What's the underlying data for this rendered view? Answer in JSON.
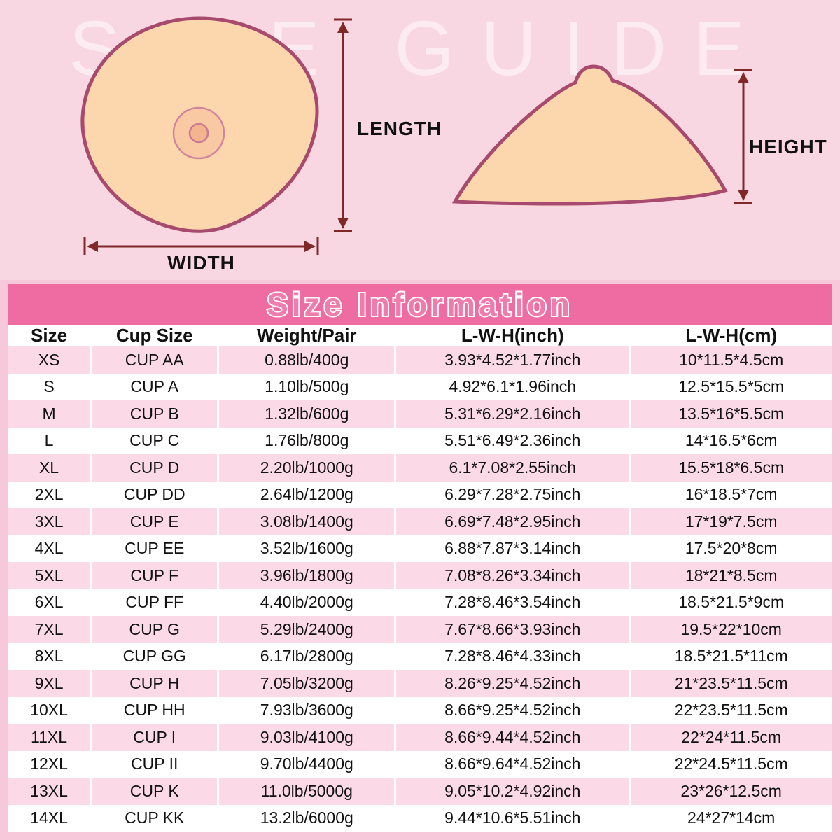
{
  "title": "Size Information",
  "diagram": {
    "watermark": "SIZE GUIDE",
    "labels": {
      "length": "LENGTH",
      "width": "WIDTH",
      "height": "HEIGHT"
    }
  },
  "colors": {
    "background_pink": "#f8d6e2",
    "frame_pink": "#f6c8da",
    "banner_pink": "#ee6ca1",
    "row_pink": "#fbd9e7",
    "shape_fill": "#fcd7ae",
    "shape_outline": "#a84a6e",
    "areola_fill": "#f9c9a4",
    "arrow_color": "#802828"
  },
  "chart_data": {
    "type": "table",
    "title": "Size Information",
    "columns": [
      "Size",
      "Cup Size",
      "Weight/Pair",
      "L-W-H(inch)",
      "L-W-H(cm)"
    ],
    "rows": [
      [
        "XS",
        "CUP AA",
        "0.88lb/400g",
        "3.93*4.52*1.77inch",
        "10*11.5*4.5cm"
      ],
      [
        "S",
        "CUP A",
        "1.10lb/500g",
        "4.92*6.1*1.96inch",
        "12.5*15.5*5cm"
      ],
      [
        "M",
        "CUP B",
        "1.32lb/600g",
        "5.31*6.29*2.16inch",
        "13.5*16*5.5cm"
      ],
      [
        "L",
        "CUP C",
        "1.76lb/800g",
        "5.51*6.49*2.36inch",
        "14*16.5*6cm"
      ],
      [
        "XL",
        "CUP D",
        "2.20lb/1000g",
        "6.1*7.08*2.55inch",
        "15.5*18*6.5cm"
      ],
      [
        "2XL",
        "CUP DD",
        "2.64lb/1200g",
        "6.29*7.28*2.75inch",
        "16*18.5*7cm"
      ],
      [
        "3XL",
        "CUP E",
        "3.08lb/1400g",
        "6.69*7.48*2.95inch",
        "17*19*7.5cm"
      ],
      [
        "4XL",
        "CUP EE",
        "3.52lb/1600g",
        "6.88*7.87*3.14inch",
        "17.5*20*8cm"
      ],
      [
        "5XL",
        "CUP F",
        "3.96lb/1800g",
        "7.08*8.26*3.34inch",
        "18*21*8.5cm"
      ],
      [
        "6XL",
        "CUP FF",
        "4.40lb/2000g",
        "7.28*8.46*3.54inch",
        "18.5*21.5*9cm"
      ],
      [
        "7XL",
        "CUP G",
        "5.29lb/2400g",
        "7.67*8.66*3.93inch",
        "19.5*22*10cm"
      ],
      [
        "8XL",
        "CUP GG",
        "6.17lb/2800g",
        "7.28*8.46*4.33inch",
        "18.5*21.5*11cm"
      ],
      [
        "9XL",
        "CUP H",
        "7.05lb/3200g",
        "8.26*9.25*4.52inch",
        "21*23.5*11.5cm"
      ],
      [
        "10XL",
        "CUP HH",
        "7.93lb/3600g",
        "8.66*9.25*4.52inch",
        "22*23.5*11.5cm"
      ],
      [
        "11XL",
        "CUP I",
        "9.03lb/4100g",
        "8.66*9.44*4.52inch",
        "22*24*11.5cm"
      ],
      [
        "12XL",
        "CUP II",
        "9.70lb/4400g",
        "8.66*9.64*4.52inch",
        "22*24.5*11.5cm"
      ],
      [
        "13XL",
        "CUP K",
        "11.0lb/5000g",
        "9.05*10.2*4.92inch",
        "23*26*12.5cm"
      ],
      [
        "14XL",
        "CUP KK",
        "13.2lb/6000g",
        "9.44*10.6*5.51inch",
        "24*27*14cm"
      ]
    ]
  }
}
